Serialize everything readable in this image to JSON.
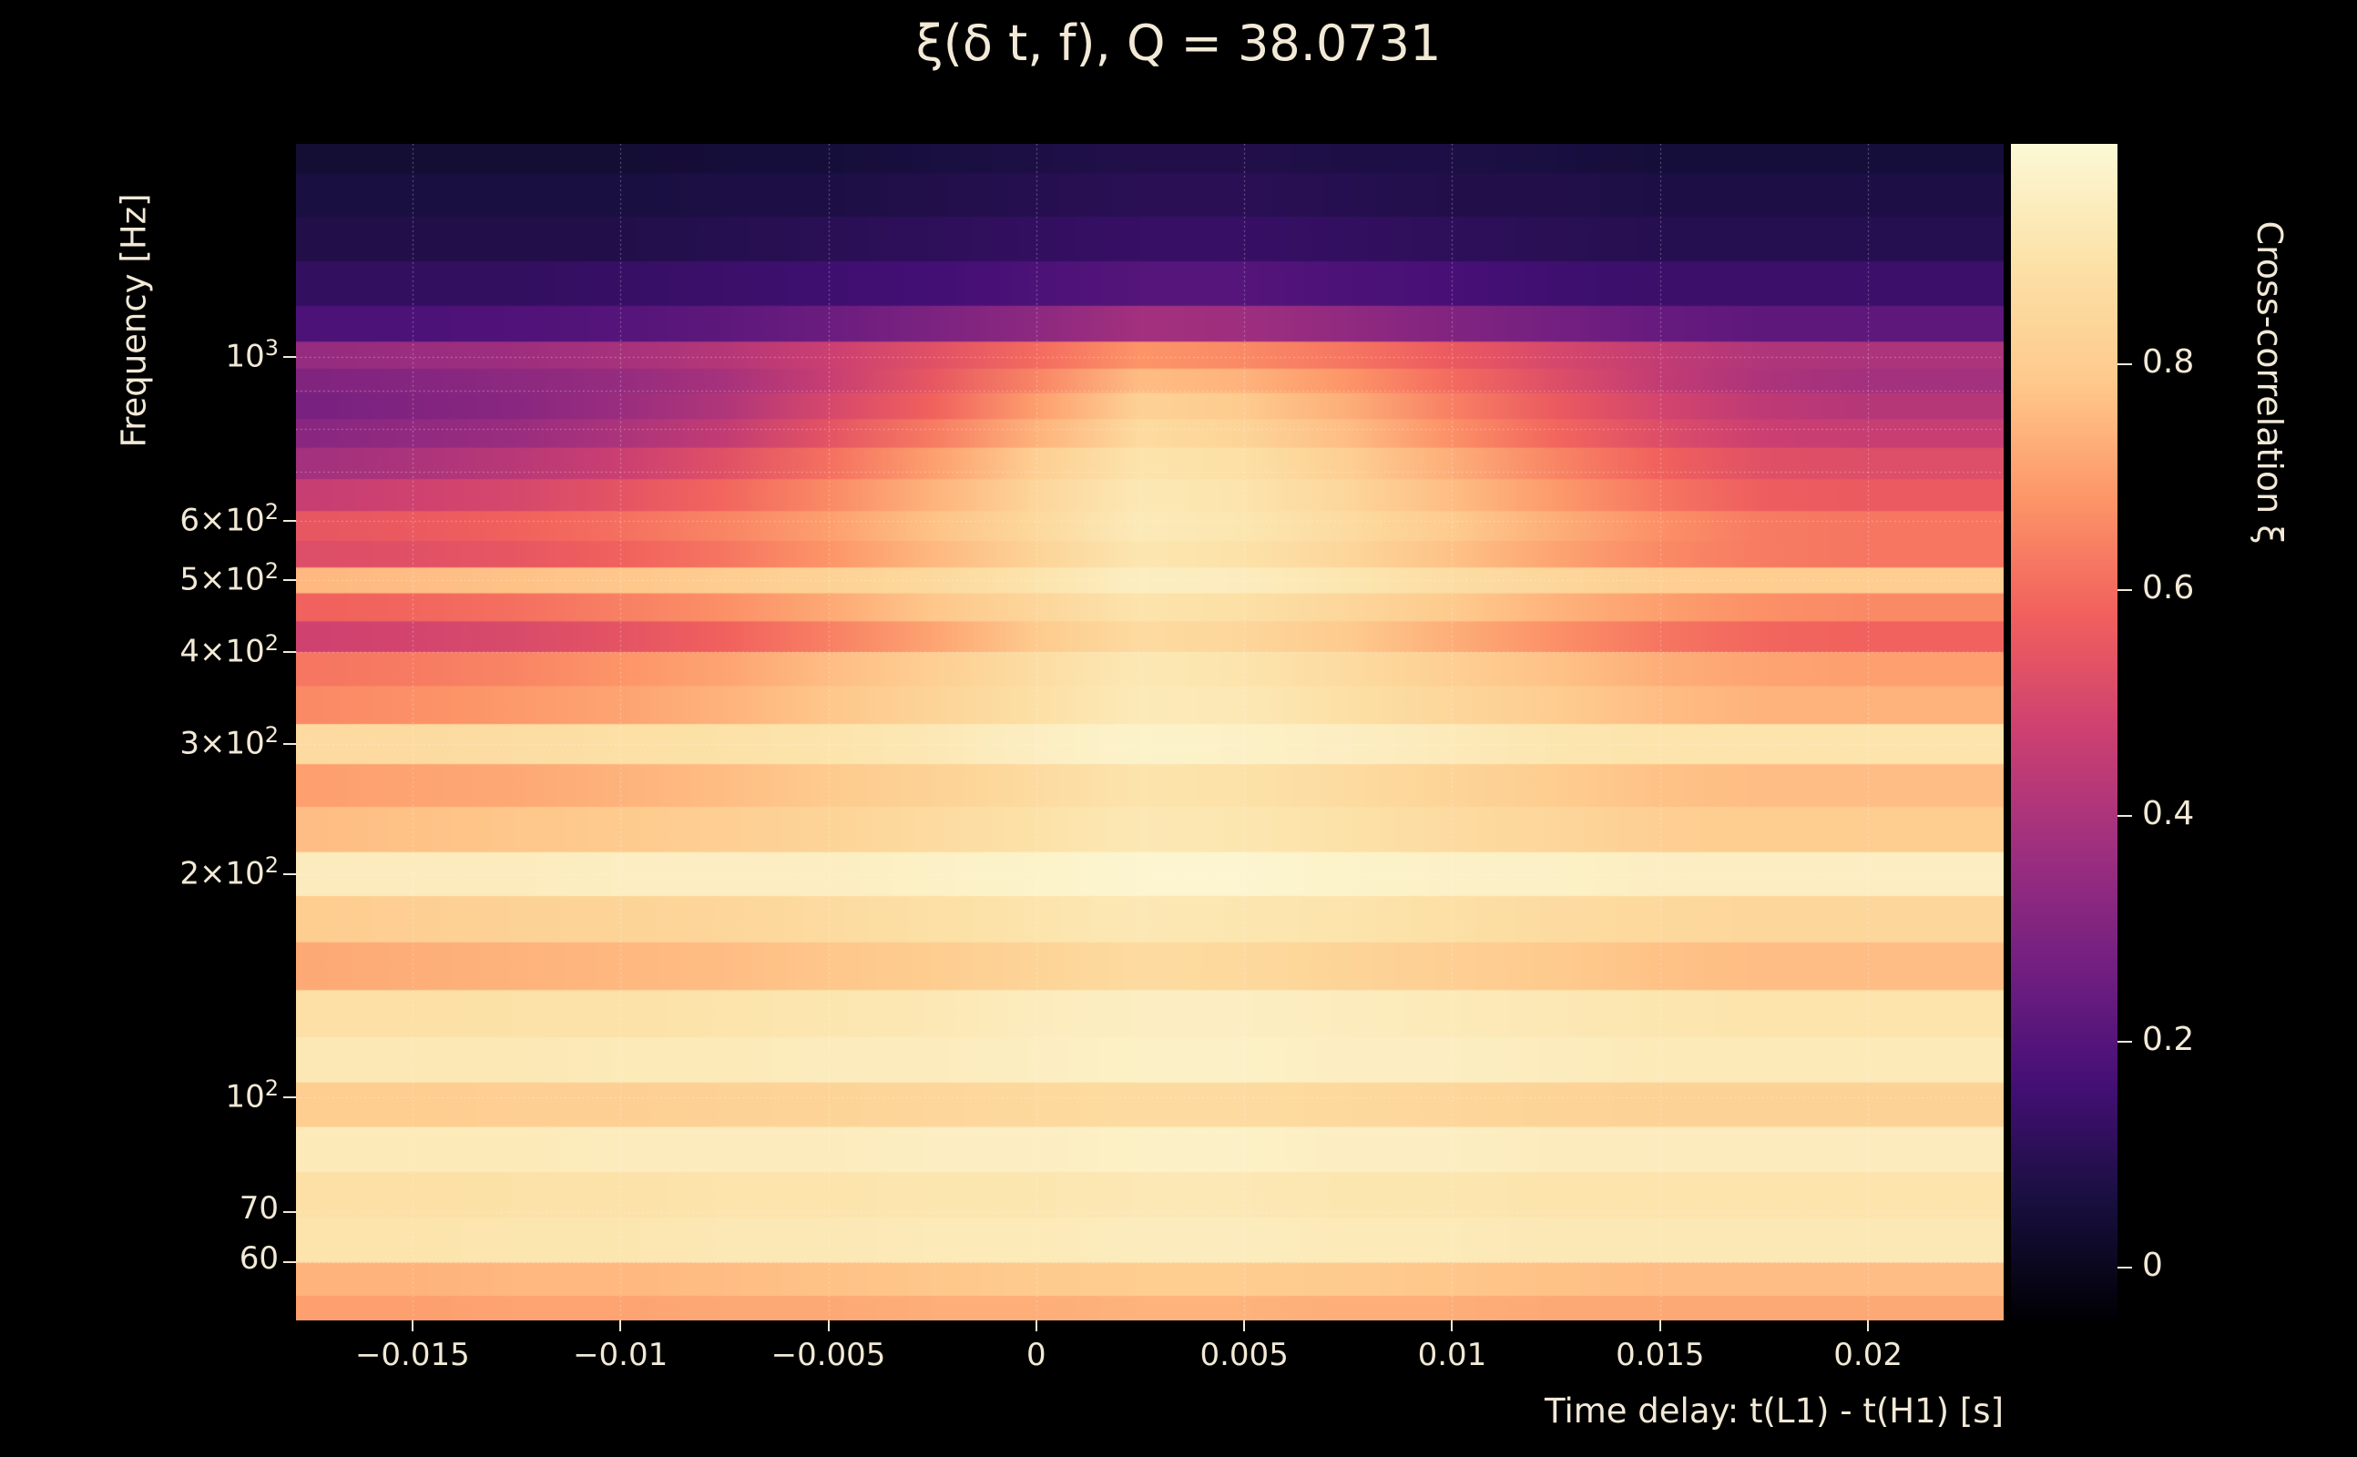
{
  "title": "ξ(δ t, f), Q = 38.0731",
  "colors": {
    "background": "#000000",
    "text": "#f2e9d6"
  },
  "axes": {
    "x": {
      "label": "Time delay: t(L1) - t(H1) [s]",
      "min": -0.0178,
      "max": 0.02326,
      "ticks": [
        {
          "value": -0.015,
          "label": "−0.015"
        },
        {
          "value": -0.01,
          "label": "−0.01"
        },
        {
          "value": -0.005,
          "label": "−0.005"
        },
        {
          "value": 0,
          "label": "0"
        },
        {
          "value": 0.005,
          "label": "0.005"
        },
        {
          "value": 0.01,
          "label": "0.01"
        },
        {
          "value": 0.015,
          "label": "0.015"
        },
        {
          "value": 0.02,
          "label": "0.02"
        }
      ]
    },
    "y": {
      "label": "Frequency [Hz]",
      "scale": "log",
      "min": 50,
      "max": 1940,
      "ticks": [
        {
          "value": 1000,
          "base": "10",
          "sup": "3"
        },
        {
          "value": 600,
          "base": "6×10",
          "sup": "2"
        },
        {
          "value": 500,
          "base": "5×10",
          "sup": "2"
        },
        {
          "value": 400,
          "base": "4×10",
          "sup": "2"
        },
        {
          "value": 300,
          "base": "3×10",
          "sup": "2"
        },
        {
          "value": 200,
          "base": "2×10",
          "sup": "2"
        },
        {
          "value": 100,
          "base": "10",
          "sup": "2"
        },
        {
          "value": 70,
          "base": "70",
          "sup": ""
        },
        {
          "value": 60,
          "base": "60",
          "sup": ""
        }
      ],
      "gridlines": [
        1000,
        900,
        800,
        700,
        600,
        500,
        400,
        300,
        200,
        100,
        90,
        80,
        70,
        60
      ]
    }
  },
  "colorbar": {
    "label": "Cross-correlation ξ",
    "min": -0.047,
    "max": 0.995,
    "ticks": [
      {
        "value": 0,
        "label": "0"
      },
      {
        "value": 0.2,
        "label": "0.2"
      },
      {
        "value": 0.4,
        "label": "0.4"
      },
      {
        "value": 0.6,
        "label": "0.6"
      },
      {
        "value": 0.8,
        "label": "0.8"
      }
    ],
    "colormap": "magma",
    "colormap_anchors": [
      {
        "t": 0.0,
        "color": "#000004"
      },
      {
        "t": 0.1,
        "color": "#180f3e"
      },
      {
        "t": 0.2,
        "color": "#440f76"
      },
      {
        "t": 0.3,
        "color": "#721f81"
      },
      {
        "t": 0.4,
        "color": "#9e2f7f"
      },
      {
        "t": 0.5,
        "color": "#cd4071"
      },
      {
        "t": 0.6,
        "color": "#f1605d"
      },
      {
        "t": 0.7,
        "color": "#fd9668"
      },
      {
        "t": 0.8,
        "color": "#feca8d"
      },
      {
        "t": 0.9,
        "color": "#fce2a8"
      },
      {
        "t": 1.0,
        "color": "#fcf8d5"
      }
    ]
  },
  "chart_data": {
    "type": "heatmap",
    "title": "ξ(δ t, f), Q = 38.0731",
    "xlabel": "Time delay: t(L1) - t(H1) [s]",
    "ylabel": "Frequency [Hz]",
    "value_label": "Cross-correlation ξ",
    "x_range": [
      -0.0178,
      0.02326
    ],
    "freq_range_hz": [
      50,
      1940
    ],
    "value_range": [
      -0.047,
      0.995
    ],
    "x": [
      -0.0175,
      -0.015,
      -0.0125,
      -0.01,
      -0.0075,
      -0.005,
      -0.0025,
      0,
      0.0025,
      0.005,
      0.0075,
      0.01,
      0.0125,
      0.015,
      0.0175,
      0.02,
      0.0225
    ],
    "frequencies": [
      1900,
      1650,
      1450,
      1250,
      1100,
      1000,
      930,
      860,
      790,
      720,
      650,
      590,
      540,
      500,
      460,
      420,
      380,
      340,
      300,
      265,
      230,
      200,
      175,
      150,
      130,
      112,
      98,
      85,
      74,
      64,
      56,
      52
    ],
    "values": [
      [
        0.04,
        0.04,
        0.04,
        0.04,
        0.05,
        0.05,
        0.06,
        0.07,
        0.08,
        0.08,
        0.07,
        0.07,
        0.06,
        0.05,
        0.05,
        0.05,
        0.05
      ],
      [
        0.06,
        0.06,
        0.06,
        0.06,
        0.07,
        0.07,
        0.08,
        0.09,
        0.1,
        0.1,
        0.09,
        0.08,
        0.08,
        0.07,
        0.07,
        0.07,
        0.07
      ],
      [
        0.08,
        0.08,
        0.08,
        0.08,
        0.09,
        0.1,
        0.11,
        0.12,
        0.13,
        0.13,
        0.12,
        0.11,
        0.1,
        0.09,
        0.09,
        0.09,
        0.09
      ],
      [
        0.12,
        0.12,
        0.12,
        0.13,
        0.14,
        0.15,
        0.16,
        0.18,
        0.2,
        0.2,
        0.18,
        0.17,
        0.15,
        0.14,
        0.14,
        0.14,
        0.14
      ],
      [
        0.18,
        0.18,
        0.19,
        0.2,
        0.22,
        0.25,
        0.29,
        0.33,
        0.38,
        0.37,
        0.34,
        0.3,
        0.27,
        0.24,
        0.22,
        0.22,
        0.22
      ],
      [
        0.35,
        0.36,
        0.37,
        0.39,
        0.42,
        0.47,
        0.53,
        0.6,
        0.68,
        0.66,
        0.62,
        0.56,
        0.5,
        0.45,
        0.41,
        0.4,
        0.4
      ],
      [
        0.3,
        0.31,
        0.33,
        0.35,
        0.39,
        0.46,
        0.55,
        0.65,
        0.76,
        0.74,
        0.68,
        0.6,
        0.52,
        0.45,
        0.4,
        0.38,
        0.38
      ],
      [
        0.28,
        0.3,
        0.32,
        0.36,
        0.41,
        0.5,
        0.58,
        0.7,
        0.82,
        0.79,
        0.73,
        0.64,
        0.56,
        0.49,
        0.44,
        0.42,
        0.42
      ],
      [
        0.32,
        0.34,
        0.36,
        0.4,
        0.45,
        0.54,
        0.63,
        0.74,
        0.86,
        0.83,
        0.76,
        0.67,
        0.59,
        0.52,
        0.47,
        0.46,
        0.46
      ],
      [
        0.38,
        0.4,
        0.43,
        0.47,
        0.53,
        0.61,
        0.7,
        0.81,
        0.9,
        0.88,
        0.81,
        0.73,
        0.65,
        0.58,
        0.53,
        0.52,
        0.52
      ],
      [
        0.46,
        0.48,
        0.5,
        0.54,
        0.59,
        0.66,
        0.74,
        0.84,
        0.92,
        0.9,
        0.84,
        0.76,
        0.69,
        0.62,
        0.57,
        0.56,
        0.56
      ],
      [
        0.55,
        0.56,
        0.58,
        0.61,
        0.65,
        0.7,
        0.77,
        0.85,
        0.93,
        0.91,
        0.86,
        0.79,
        0.73,
        0.67,
        0.63,
        0.62,
        0.62
      ],
      [
        0.52,
        0.53,
        0.55,
        0.58,
        0.62,
        0.68,
        0.75,
        0.83,
        0.91,
        0.89,
        0.84,
        0.77,
        0.71,
        0.66,
        0.63,
        0.62,
        0.62
      ],
      [
        0.75,
        0.76,
        0.77,
        0.78,
        0.8,
        0.82,
        0.85,
        0.9,
        0.95,
        0.94,
        0.91,
        0.87,
        0.84,
        0.81,
        0.8,
        0.8,
        0.8
      ],
      [
        0.58,
        0.59,
        0.61,
        0.64,
        0.67,
        0.72,
        0.78,
        0.84,
        0.9,
        0.88,
        0.84,
        0.79,
        0.74,
        0.7,
        0.67,
        0.66,
        0.66
      ],
      [
        0.48,
        0.49,
        0.51,
        0.54,
        0.58,
        0.64,
        0.71,
        0.79,
        0.86,
        0.84,
        0.79,
        0.73,
        0.67,
        0.62,
        0.59,
        0.58,
        0.58
      ],
      [
        0.62,
        0.63,
        0.65,
        0.68,
        0.71,
        0.76,
        0.81,
        0.87,
        0.92,
        0.9,
        0.86,
        0.81,
        0.77,
        0.73,
        0.71,
        0.7,
        0.7
      ],
      [
        0.66,
        0.67,
        0.69,
        0.71,
        0.74,
        0.78,
        0.83,
        0.88,
        0.93,
        0.92,
        0.88,
        0.84,
        0.8,
        0.76,
        0.74,
        0.74,
        0.74
      ],
      [
        0.86,
        0.86,
        0.87,
        0.88,
        0.89,
        0.9,
        0.92,
        0.95,
        0.97,
        0.96,
        0.95,
        0.93,
        0.91,
        0.9,
        0.9,
        0.9,
        0.9
      ],
      [
        0.7,
        0.71,
        0.72,
        0.74,
        0.76,
        0.79,
        0.82,
        0.86,
        0.9,
        0.89,
        0.86,
        0.83,
        0.8,
        0.77,
        0.76,
        0.76,
        0.76
      ],
      [
        0.76,
        0.77,
        0.78,
        0.79,
        0.81,
        0.83,
        0.86,
        0.89,
        0.92,
        0.91,
        0.89,
        0.86,
        0.84,
        0.81,
        0.8,
        0.8,
        0.8
      ],
      [
        0.94,
        0.94,
        0.94,
        0.95,
        0.95,
        0.95,
        0.96,
        0.97,
        0.98,
        0.98,
        0.97,
        0.96,
        0.96,
        0.95,
        0.95,
        0.95,
        0.95
      ],
      [
        0.8,
        0.81,
        0.82,
        0.83,
        0.84,
        0.86,
        0.88,
        0.9,
        0.92,
        0.91,
        0.9,
        0.88,
        0.86,
        0.85,
        0.84,
        0.84,
        0.84
      ],
      [
        0.72,
        0.73,
        0.74,
        0.75,
        0.76,
        0.78,
        0.8,
        0.83,
        0.86,
        0.85,
        0.83,
        0.81,
        0.79,
        0.77,
        0.76,
        0.76,
        0.76
      ],
      [
        0.88,
        0.88,
        0.89,
        0.89,
        0.9,
        0.91,
        0.92,
        0.94,
        0.95,
        0.95,
        0.94,
        0.93,
        0.92,
        0.91,
        0.9,
        0.9,
        0.9
      ],
      [
        0.92,
        0.92,
        0.92,
        0.93,
        0.93,
        0.94,
        0.94,
        0.95,
        0.96,
        0.96,
        0.95,
        0.95,
        0.94,
        0.93,
        0.93,
        0.93,
        0.93
      ],
      [
        0.8,
        0.8,
        0.81,
        0.81,
        0.82,
        0.83,
        0.84,
        0.85,
        0.86,
        0.86,
        0.85,
        0.84,
        0.83,
        0.82,
        0.82,
        0.82,
        0.82
      ],
      [
        0.93,
        0.93,
        0.93,
        0.94,
        0.94,
        0.94,
        0.95,
        0.95,
        0.96,
        0.96,
        0.95,
        0.95,
        0.94,
        0.94,
        0.94,
        0.94,
        0.94
      ],
      [
        0.88,
        0.88,
        0.89,
        0.89,
        0.9,
        0.9,
        0.91,
        0.91,
        0.92,
        0.92,
        0.91,
        0.91,
        0.9,
        0.9,
        0.9,
        0.9,
        0.9
      ],
      [
        0.9,
        0.9,
        0.91,
        0.91,
        0.92,
        0.92,
        0.93,
        0.93,
        0.94,
        0.94,
        0.93,
        0.93,
        0.92,
        0.92,
        0.92,
        0.92,
        0.92
      ],
      [
        0.74,
        0.74,
        0.75,
        0.75,
        0.76,
        0.77,
        0.78,
        0.79,
        0.8,
        0.8,
        0.79,
        0.78,
        0.77,
        0.76,
        0.76,
        0.76,
        0.76
      ],
      [
        0.7,
        0.7,
        0.71,
        0.71,
        0.72,
        0.72,
        0.73,
        0.73,
        0.74,
        0.74,
        0.73,
        0.73,
        0.72,
        0.72,
        0.72,
        0.72,
        0.72
      ]
    ]
  }
}
